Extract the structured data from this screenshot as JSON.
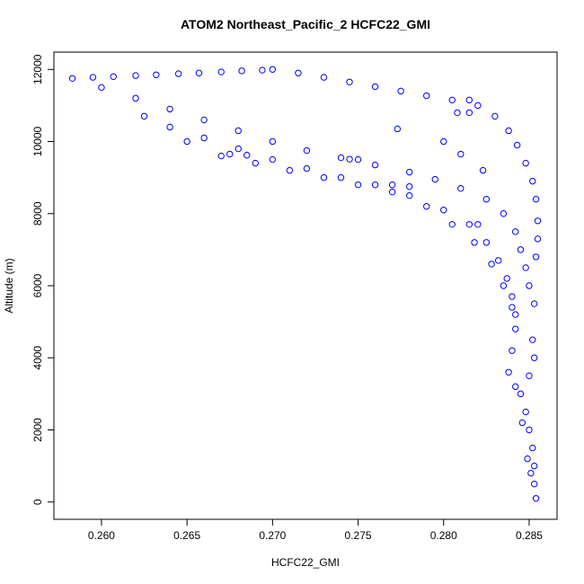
{
  "chart_data": {
    "type": "scatter",
    "title": "ATOM2 Northeast_Pacific_2 HCFC22_GMI",
    "x_label": "HCFC22_GMI",
    "y_label": "Altitude (m)",
    "color": "#0000ff",
    "xlim": [
      0.25722,
      0.28663
    ],
    "ylim": [
      -480,
      12480
    ],
    "xticks": [
      {
        "value": 0.26,
        "label": "0.260"
      },
      {
        "value": 0.265,
        "label": "0.265"
      },
      {
        "value": 0.27,
        "label": "0.270"
      },
      {
        "value": 0.275,
        "label": "0.275"
      },
      {
        "value": 0.28,
        "label": "0.280"
      },
      {
        "value": 0.285,
        "label": "0.285"
      }
    ],
    "yticks": [
      0,
      2000,
      4000,
      6000,
      8000,
      10000,
      12000
    ],
    "x": [
      0.2583,
      0.2595,
      0.2607,
      0.262,
      0.2632,
      0.2645,
      0.2657,
      0.267,
      0.2682,
      0.2694,
      0.27,
      0.2715,
      0.273,
      0.2745,
      0.276,
      0.2775,
      0.279,
      0.2805,
      0.2815,
      0.282,
      0.283,
      0.2838,
      0.2843,
      0.2848,
      0.2852,
      0.2854,
      0.2855,
      0.26,
      0.262,
      0.264,
      0.266,
      0.268,
      0.27,
      0.272,
      0.274,
      0.276,
      0.278,
      0.2795,
      0.281,
      0.2825,
      0.2835,
      0.2842,
      0.2845,
      0.2848,
      0.285,
      0.2625,
      0.264,
      0.266,
      0.268,
      0.27,
      0.272,
      0.274,
      0.276,
      0.278,
      0.28,
      0.2815,
      0.2825,
      0.2832,
      0.2837,
      0.284,
      0.2842,
      0.265,
      0.267,
      0.269,
      0.271,
      0.273,
      0.275,
      0.277,
      0.279,
      0.2805,
      0.2818,
      0.2828,
      0.2835,
      0.284,
      0.2842,
      0.284,
      0.2838,
      0.2675,
      0.2685,
      0.275,
      0.2745,
      0.277,
      0.278,
      0.2773,
      0.28,
      0.281,
      0.2823,
      0.282,
      0.2808,
      0.2815,
      0.2845,
      0.2848,
      0.285,
      0.2852,
      0.2853,
      0.2853,
      0.2854,
      0.2853,
      0.285,
      0.2846,
      0.2851,
      0.2852,
      0.2853,
      0.2854,
      0.2855,
      0.2842,
      0.2849
    ],
    "values": [
      11750,
      11780,
      11800,
      11830,
      11850,
      11880,
      11900,
      11930,
      11960,
      11980,
      12000,
      11900,
      11780,
      11650,
      11520,
      11400,
      11270,
      11150,
      11150,
      11000,
      10700,
      10300,
      9900,
      9400,
      8900,
      8400,
      7800,
      11500,
      11200,
      10900,
      10600,
      10300,
      10000,
      9750,
      9550,
      9350,
      9150,
      8950,
      8700,
      8400,
      8000,
      7500,
      7000,
      6500,
      6000,
      10700,
      10400,
      10100,
      9800,
      9500,
      9250,
      9000,
      8800,
      8500,
      8100,
      7700,
      7200,
      6700,
      6200,
      5700,
      5200,
      10000,
      9600,
      9400,
      9200,
      9000,
      8800,
      8600,
      8200,
      7700,
      7200,
      6600,
      6000,
      5400,
      4800,
      4200,
      3600,
      9650,
      9620,
      9500,
      9510,
      8800,
      8750,
      10350,
      10000,
      9650,
      9200,
      7700,
      10800,
      10800,
      3000,
      2500,
      2000,
      1500,
      1000,
      500,
      100,
      4000,
      3500,
      2200,
      800,
      4500,
      5500,
      6800,
      7300,
      3200,
      1200
    ]
  }
}
